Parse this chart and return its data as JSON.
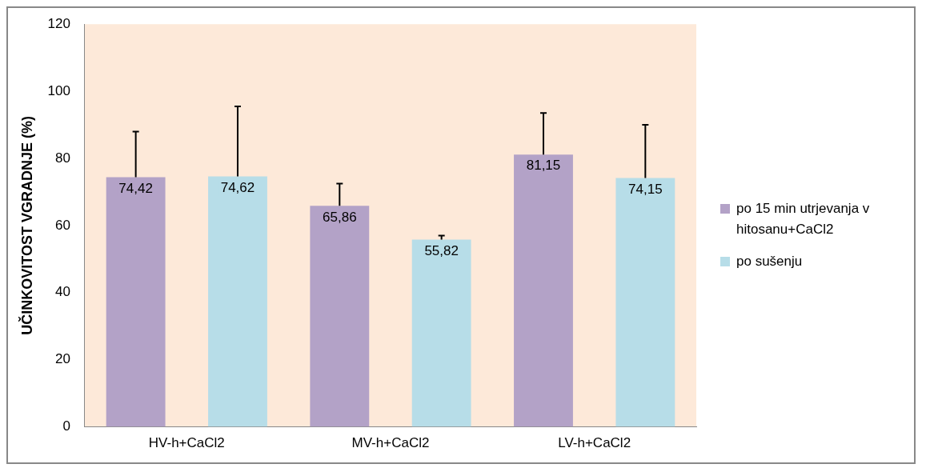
{
  "chart_data": {
    "type": "bar",
    "ylabel": "UČINKOVITOST VGRADNJE (%)",
    "categories": [
      "HV-h+CaCl2",
      "MV-h+CaCl2",
      "LV-h+CaCl2"
    ],
    "series": [
      {
        "name": "po 15 min utrjevanja v hitosanu+CaCl2",
        "color": "#b3a2c7",
        "values": [
          74.42,
          65.86,
          81.15
        ],
        "value_labels": [
          "74,42",
          "65,86",
          "81,15"
        ],
        "errors": [
          [
            74.42,
            88
          ],
          [
            65.86,
            72.5
          ],
          [
            81.15,
            93.5
          ]
        ]
      },
      {
        "name": "po sušenju",
        "color": "#b7dde8",
        "values": [
          74.62,
          55.82,
          74.15
        ],
        "value_labels": [
          "74,62",
          "55,82",
          "74,15"
        ],
        "errors": [
          [
            74.62,
            95.5
          ],
          [
            55.82,
            57
          ],
          [
            74.15,
            90
          ]
        ]
      }
    ],
    "ylim": [
      0,
      120
    ],
    "yticks": [
      0,
      20,
      40,
      60,
      80,
      100,
      120
    ],
    "grid": false,
    "legend": "right"
  }
}
